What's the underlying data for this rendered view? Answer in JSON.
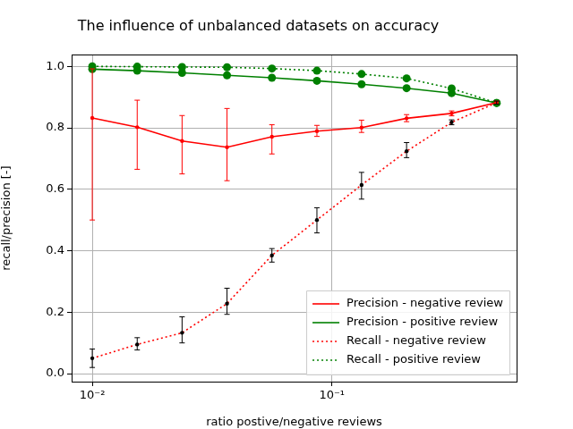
{
  "chart_data": {
    "type": "line",
    "title": "The influence of unbalanced datasets on accuracy",
    "x_label": "ratio postive/negative reviews",
    "y_label": "recall/precision [-]",
    "log": "x",
    "grid": true,
    "legend": "lower right",
    "xlim": [
      0.0082,
      0.59
    ],
    "xticks": [
      {
        "value": 0.01,
        "label": "10⁻²"
      },
      {
        "value": 0.1,
        "label": "10⁻¹"
      }
    ],
    "ylim": [
      -0.026,
      1.038
    ],
    "yticks": [
      {
        "value": 0,
        "label": "0.0"
      },
      0.2,
      0.4,
      0.6,
      0.8,
      {
        "value": 1,
        "label": "1.0"
      }
    ],
    "x": [
      0.01,
      0.0154,
      0.0237,
      0.0365,
      0.0562,
      0.0866,
      0.133,
      0.205,
      0.316,
      0.487
    ],
    "series": [
      {
        "name": "Precision - negative review",
        "color": "#ff0000",
        "line_style": "solid",
        "marker": "dot",
        "values": [
          0.832,
          0.802,
          0.757,
          0.737,
          0.771,
          0.789,
          0.801,
          0.831,
          0.847,
          0.882
        ],
        "error_minus": [
          0.332,
          0.137,
          0.107,
          0.109,
          0.056,
          0.017,
          0.016,
          0.011,
          0.008,
          0.005
        ],
        "error_plus": [
          0.16,
          0.088,
          0.083,
          0.126,
          0.039,
          0.019,
          0.024,
          0.012,
          0.008,
          0.005
        ]
      },
      {
        "name": "Precision - positive review",
        "color": "#008000",
        "line_style": "solid",
        "marker": "circle",
        "values": [
          0.991,
          0.986,
          0.979,
          0.971,
          0.963,
          0.953,
          0.942,
          0.929,
          0.913,
          0.881
        ]
      },
      {
        "name": "Recall - negative review",
        "color": "#ff0000",
        "line_style": "dotted",
        "marker": "black dot",
        "values": [
          0.05,
          0.095,
          0.133,
          0.228,
          0.385,
          0.5,
          0.614,
          0.724,
          0.818,
          0.882
        ],
        "error_minus": [
          0.03,
          0.018,
          0.033,
          0.035,
          0.022,
          0.042,
          0.046,
          0.021,
          0.008,
          0.005
        ],
        "error_plus": [
          0.03,
          0.022,
          0.052,
          0.05,
          0.022,
          0.04,
          0.041,
          0.028,
          0.008,
          0.005
        ]
      },
      {
        "name": "Recall - positive review",
        "color": "#008000",
        "line_style": "dotted",
        "marker": "circle",
        "values": [
          1.0,
          0.999,
          0.998,
          0.997,
          0.993,
          0.986,
          0.975,
          0.961,
          0.928,
          0.881
        ]
      }
    ]
  }
}
